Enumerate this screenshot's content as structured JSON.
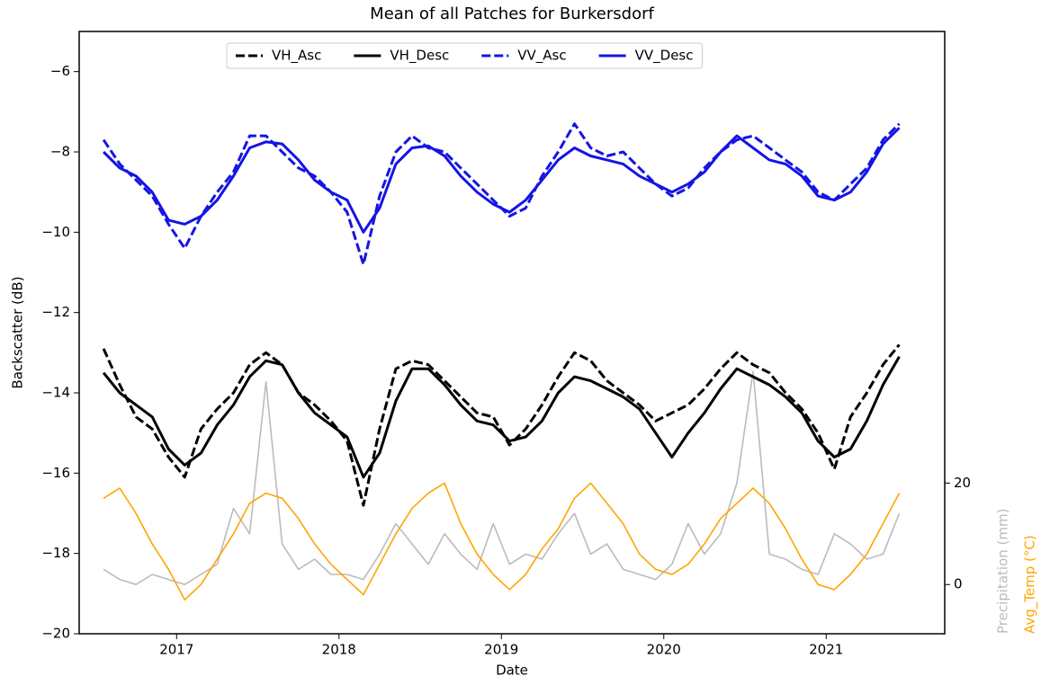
{
  "chart_data": {
    "type": "line",
    "title": "Mean of all Patches for Burkersdorf",
    "xlabel": "Date",
    "ylabel": "Backscatter (dB)",
    "y2labels": [
      {
        "text": "Precipitation (mm)",
        "color": "#bbbbbb"
      },
      {
        "text": "Avg_Temp (°C)",
        "color": "#ffa500"
      }
    ],
    "x": [
      2016.55,
      2016.65,
      2016.75,
      2016.85,
      2016.95,
      2017.05,
      2017.15,
      2017.25,
      2017.35,
      2017.45,
      2017.55,
      2017.65,
      2017.75,
      2017.85,
      2017.95,
      2018.05,
      2018.15,
      2018.25,
      2018.35,
      2018.45,
      2018.55,
      2018.65,
      2018.75,
      2018.85,
      2018.95,
      2019.05,
      2019.15,
      2019.25,
      2019.35,
      2019.45,
      2019.55,
      2019.65,
      2019.75,
      2019.85,
      2019.95,
      2020.05,
      2020.15,
      2020.25,
      2020.35,
      2020.45,
      2020.55,
      2020.65,
      2020.75,
      2020.85,
      2020.95,
      2021.05,
      2021.15,
      2021.25,
      2021.35,
      2021.45
    ],
    "xlim": [
      2016.4,
      2021.73
    ],
    "xticks": [
      2017,
      2018,
      2019,
      2020,
      2021
    ],
    "ylim": [
      -20,
      -5
    ],
    "yticks": [
      {
        "value": -6,
        "label": "−6"
      },
      {
        "value": -8,
        "label": "−8"
      },
      {
        "value": -10,
        "label": "−10"
      },
      {
        "value": -12,
        "label": "−12"
      },
      {
        "value": -14,
        "label": "−14"
      },
      {
        "value": -16,
        "label": "−16"
      },
      {
        "value": -18,
        "label": "−18"
      },
      {
        "value": -20,
        "label": "−20"
      }
    ],
    "y2lim": [
      -9.7,
      109
    ],
    "y2ticks": [
      0,
      20
    ],
    "legend": "top",
    "series": [
      {
        "name": "VH_Asc",
        "color": "#000000",
        "style": "dashed",
        "legend": true,
        "values": [
          -12.9,
          -13.8,
          -14.6,
          -14.9,
          -15.6,
          -16.1,
          -14.9,
          -14.4,
          -14.0,
          -13.3,
          -13.0,
          -13.3,
          -14.0,
          -14.3,
          -14.7,
          -15.2,
          -16.8,
          -14.9,
          -13.4,
          -13.2,
          -13.3,
          -13.7,
          -14.1,
          -14.5,
          -14.6,
          -15.3,
          -14.9,
          -14.3,
          -13.6,
          -13.0,
          -13.2,
          -13.7,
          -14.0,
          -14.3,
          -14.7,
          -14.5,
          -14.3,
          -13.9,
          -13.4,
          -13.0,
          -13.3,
          -13.5,
          -14.0,
          -14.4,
          -15.0,
          -15.9,
          -14.6,
          -14.0,
          -13.3,
          -12.8
        ]
      },
      {
        "name": "VH_Desc",
        "color": "#000000",
        "style": "solid",
        "legend": true,
        "values": [
          -13.5,
          -14.0,
          -14.3,
          -14.6,
          -15.4,
          -15.8,
          -15.5,
          -14.8,
          -14.3,
          -13.6,
          -13.2,
          -13.3,
          -14.0,
          -14.5,
          -14.8,
          -15.1,
          -16.1,
          -15.5,
          -14.2,
          -13.4,
          -13.4,
          -13.8,
          -14.3,
          -14.7,
          -14.8,
          -15.2,
          -15.1,
          -14.7,
          -14.0,
          -13.6,
          -13.7,
          -13.9,
          -14.1,
          -14.4,
          -15.0,
          -15.6,
          -15.0,
          -14.5,
          -13.9,
          -13.4,
          -13.6,
          -13.8,
          -14.1,
          -14.5,
          -15.2,
          -15.6,
          -15.4,
          -14.7,
          -13.8,
          -13.1
        ]
      },
      {
        "name": "VV_Asc",
        "color": "#1414e6",
        "style": "dashed",
        "legend": true,
        "values": [
          -7.7,
          -8.3,
          -8.7,
          -9.1,
          -9.8,
          -10.4,
          -9.6,
          -9.0,
          -8.5,
          -7.6,
          -7.6,
          -8.0,
          -8.4,
          -8.6,
          -9.0,
          -9.5,
          -10.8,
          -9.1,
          -8.0,
          -7.6,
          -7.9,
          -8.0,
          -8.4,
          -8.8,
          -9.2,
          -9.6,
          -9.4,
          -8.6,
          -8.0,
          -7.3,
          -7.9,
          -8.1,
          -8.0,
          -8.4,
          -8.8,
          -9.1,
          -8.9,
          -8.4,
          -8.0,
          -7.7,
          -7.6,
          -7.9,
          -8.2,
          -8.5,
          -9.0,
          -9.2,
          -8.8,
          -8.4,
          -7.7,
          -7.3
        ]
      },
      {
        "name": "VV_Desc",
        "color": "#1414e6",
        "style": "solid",
        "legend": true,
        "values": [
          -8.0,
          -8.4,
          -8.6,
          -9.0,
          -9.7,
          -9.8,
          -9.6,
          -9.2,
          -8.6,
          -7.9,
          -7.75,
          -7.8,
          -8.2,
          -8.7,
          -9.0,
          -9.2,
          -10.0,
          -9.4,
          -8.3,
          -7.9,
          -7.85,
          -8.1,
          -8.6,
          -9.0,
          -9.3,
          -9.5,
          -9.2,
          -8.7,
          -8.2,
          -7.9,
          -8.1,
          -8.2,
          -8.3,
          -8.6,
          -8.8,
          -9.0,
          -8.8,
          -8.5,
          -8.0,
          -7.6,
          -7.9,
          -8.2,
          -8.3,
          -8.6,
          -9.1,
          -9.2,
          -9.0,
          -8.5,
          -7.8,
          -7.4
        ]
      },
      {
        "name": "Precipitation (mm)",
        "color": "#bbbbbb",
        "style": "thin",
        "axis": "y2",
        "values": [
          3,
          1,
          0,
          2,
          1,
          0,
          2,
          4,
          15,
          10,
          40,
          8,
          3,
          5,
          2,
          2,
          1,
          6,
          12,
          8,
          4,
          10,
          6,
          3,
          12,
          4,
          6,
          5,
          10,
          14,
          6,
          8,
          3,
          2,
          1,
          4,
          12,
          6,
          10,
          20,
          42,
          6,
          5,
          3,
          2,
          10,
          8,
          5,
          6,
          14
        ]
      },
      {
        "name": "Avg_Temp (°C)",
        "color": "#ffa500",
        "style": "thin",
        "axis": "y2",
        "values": [
          17,
          19,
          14,
          8,
          3,
          -3,
          0,
          5,
          10,
          16,
          18,
          17,
          13,
          8,
          4,
          1,
          -2,
          4,
          10,
          15,
          18,
          20,
          12,
          6,
          2,
          -1,
          2,
          7,
          11,
          17,
          20,
          16,
          12,
          6,
          3,
          2,
          4,
          8,
          13,
          16,
          19,
          16,
          11,
          5,
          0,
          -1,
          2,
          6,
          12,
          18
        ]
      }
    ]
  }
}
